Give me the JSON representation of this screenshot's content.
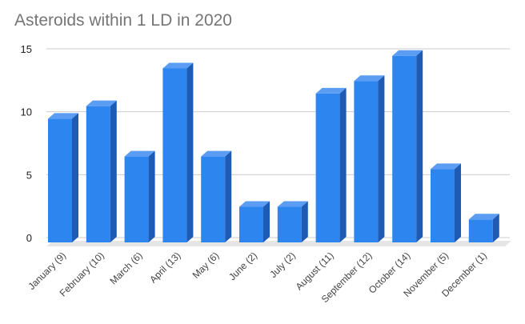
{
  "chart_data": {
    "type": "bar",
    "title": "Asteroids within 1 LD in 2020",
    "categories": [
      "January (9)",
      "February (10)",
      "March (6)",
      "April (13)",
      "May (6)",
      "June (2)",
      "July (2)",
      "August (11)",
      "September (12)",
      "October (14)",
      "November (5)",
      "December (1)"
    ],
    "values": [
      9,
      10,
      6,
      13,
      6,
      2,
      2,
      11,
      12,
      14,
      5,
      1
    ],
    "ylim": [
      0,
      15
    ],
    "yticks": [
      0,
      5,
      10,
      15
    ],
    "ytick_labels": [
      "0",
      "5",
      "10",
      "15"
    ],
    "grid": true,
    "legend": "none",
    "style": "3d",
    "colors": {
      "bar_front": "#2d85f0",
      "bar_top": "#5a9df2",
      "bar_side": "#1e5bb5",
      "floor": "#e6e6e6",
      "grid": "#cccccc"
    }
  }
}
